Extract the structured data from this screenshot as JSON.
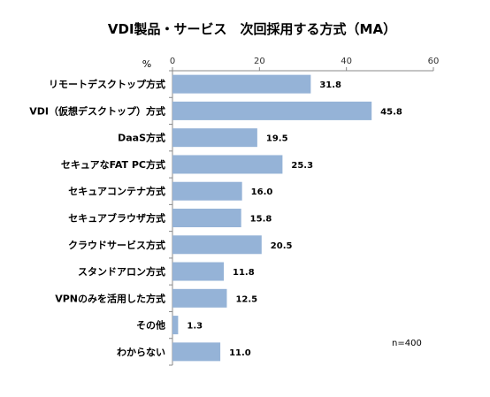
{
  "chart_data": {
    "type": "bar",
    "orientation": "horizontal",
    "title": "VDI製品・サービス　次回採用する方式（MA）",
    "unit_label": "%",
    "note": "n=400",
    "xlim": [
      0,
      60
    ],
    "xticks": [
      0,
      20,
      40,
      60
    ],
    "grid": false,
    "bar_color": "#95B3D7",
    "categories": [
      "リモートデスクトップ方式",
      "VDI（仮想デスクトップ）方式",
      "DaaS方式",
      "セキュアなFAT PC方式",
      "セキュアコンテナ方式",
      "セキュアブラウザ方式",
      "クラウドサービス方式",
      "スタンドアロン方式",
      "VPNのみを活用した方式",
      "その他",
      "わからない"
    ],
    "values": [
      31.8,
      45.8,
      19.5,
      25.3,
      16.0,
      15.8,
      20.5,
      11.8,
      12.5,
      1.3,
      11.0
    ],
    "value_labels": [
      "31.8",
      "45.8",
      "19.5",
      "25.3",
      "16.0",
      "15.8",
      "20.5",
      "11.8",
      "12.5",
      "1.3",
      "11.0"
    ]
  }
}
